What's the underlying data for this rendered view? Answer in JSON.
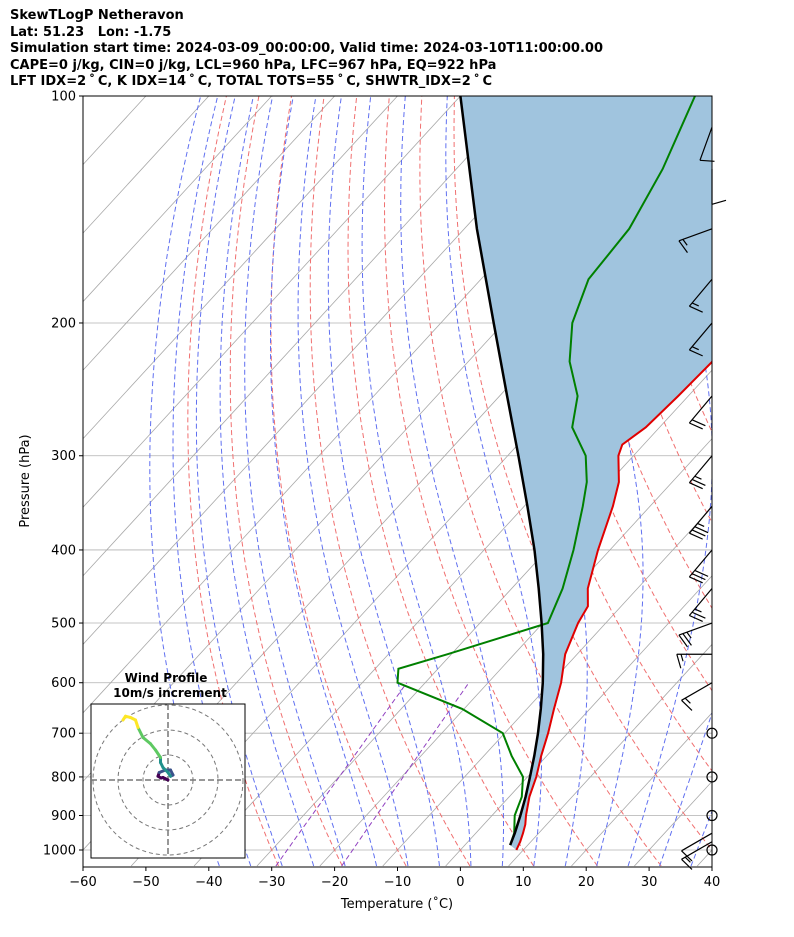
{
  "chart_data": {
    "type": "line",
    "title_lines": [
      "SkewTLogP Netheravon",
      "Lat: 51.23   Lon: -1.75",
      "Simulation start time: 2024-03-09_00:00:00, Valid time: 2024-03-10T11:00:00.00",
      "CAPE=0 j/kg, CIN=0 j/kg, LCL=960 hPa, LFC=967 hPa, EQ=922 hPa",
      "LFT IDX=2$^\\circ$C, K IDX=14$^\\circ$C, TOTAL TOTS=55$^\\circ$C, SHWTR_IDX=2$^\\circ$C"
    ],
    "title_display": [
      "SkewTLogP Netheravon",
      "Lat: 51.23   Lon: -1.75",
      "Simulation start time: 2024-03-09_00:00:00, Valid time: 2024-03-10T11:00:00.00",
      "CAPE=0 j/kg, CIN=0 j/kg, LCL=960 hPa, LFC=967 hPa, EQ=922 hPa",
      "LFT IDX=2 ˚ C, K IDX=14 ˚ C, TOTAL TOTS=55 ˚ C, SHWTR_IDX=2 ˚ C"
    ],
    "xlabel": "Temperature (˚C)",
    "ylabel": "Pressure (hPa)",
    "xlim": [
      -60,
      40
    ],
    "ylim": [
      1050,
      100
    ],
    "xticks": [
      -60,
      -50,
      -40,
      -30,
      -20,
      -10,
      0,
      10,
      20,
      30,
      40
    ],
    "xtick_labels": [
      "−60",
      "−50",
      "−40",
      "−30",
      "−20",
      "−10",
      "0",
      "10",
      "20",
      "30",
      "40"
    ],
    "yticks": [
      1000,
      900,
      800,
      700,
      600,
      500,
      400,
      300,
      200,
      100
    ],
    "ytick_labels": [
      "1000",
      "900",
      "800",
      "700",
      "600",
      "500",
      "400",
      "300",
      "200",
      "100"
    ],
    "skew_deg_per_decade": 110,
    "colors": {
      "temperature": "#e00000",
      "dewpoint": "#008000",
      "parcel": "#000000",
      "cape_fill": "#a0c4de",
      "dry_adiabat": "#f07070",
      "moist_adiabat": "#6070f0",
      "isotherm": "#a8a8a8",
      "mixing_ratio": "#9040c0",
      "grid": "#b0b0b0"
    },
    "series": [
      {
        "name": "Temperature",
        "points": [
          [
            1000,
            8.9
          ],
          [
            975,
            8.3
          ],
          [
            950,
            7.5
          ],
          [
            925,
            6.6
          ],
          [
            900,
            5.4
          ],
          [
            850,
            3.2
          ],
          [
            800,
            1.4
          ],
          [
            750,
            -0.9
          ],
          [
            700,
            -3.1
          ],
          [
            650,
            -5.7
          ],
          [
            600,
            -8.4
          ],
          [
            550,
            -11.9
          ],
          [
            500,
            -14.4
          ],
          [
            475,
            -15.3
          ],
          [
            450,
            -17.9
          ],
          [
            400,
            -21.9
          ],
          [
            350,
            -25.9
          ],
          [
            325,
            -28.5
          ],
          [
            300,
            -32.4
          ],
          [
            290,
            -33.4
          ],
          [
            275,
            -32.2
          ],
          [
            250,
            -31.6
          ],
          [
            225,
            -31.2
          ],
          [
            200,
            -30.5
          ],
          [
            175,
            -31.5
          ],
          [
            150,
            -33.6
          ],
          [
            125,
            -36.4
          ],
          [
            110,
            -37.6
          ],
          [
            100,
            -39.6
          ]
        ]
      },
      {
        "name": "Dewpoint",
        "points": [
          [
            985,
            7.2
          ],
          [
            950,
            6.1
          ],
          [
            900,
            3.6
          ],
          [
            850,
            2.0
          ],
          [
            800,
            -0.7
          ],
          [
            750,
            -5.6
          ],
          [
            700,
            -10.3
          ],
          [
            650,
            -20.3
          ],
          [
            600,
            -34.4
          ],
          [
            575,
            -36.3
          ],
          [
            550,
            -30.6
          ],
          [
            500,
            -19.2
          ],
          [
            450,
            -21.9
          ],
          [
            400,
            -25.8
          ],
          [
            350,
            -30.7
          ],
          [
            325,
            -33.6
          ],
          [
            300,
            -37.6
          ],
          [
            275,
            -43.9
          ],
          [
            250,
            -47.6
          ],
          [
            225,
            -53.9
          ],
          [
            200,
            -59.1
          ],
          [
            175,
            -62.9
          ],
          [
            150,
            -63.8
          ],
          [
            125,
            -67.2
          ],
          [
            100,
            -72.7
          ]
        ]
      },
      {
        "name": "Parcel",
        "points": [
          [
            985,
            7.2
          ],
          [
            950,
            6.2
          ],
          [
            900,
            4.5
          ],
          [
            850,
            2.6
          ],
          [
            800,
            0.4
          ],
          [
            750,
            -2.0
          ],
          [
            700,
            -4.7
          ],
          [
            650,
            -7.8
          ],
          [
            600,
            -11.3
          ],
          [
            550,
            -15.4
          ],
          [
            500,
            -20.2
          ],
          [
            450,
            -25.7
          ],
          [
            400,
            -32.0
          ],
          [
            350,
            -39.5
          ],
          [
            300,
            -48.3
          ],
          [
            250,
            -58.8
          ],
          [
            200,
            -71.6
          ],
          [
            150,
            -88.0
          ],
          [
            100,
            -110.0
          ]
        ]
      }
    ],
    "wind_barbs": [
      {
        "p": 1000,
        "calm": true
      },
      {
        "p": 975,
        "speed_kt": 15,
        "dir_deg": 300
      },
      {
        "p": 950,
        "speed_kt": 10,
        "dir_deg": 300
      },
      {
        "p": 900,
        "calm": true
      },
      {
        "p": 800,
        "calm": true
      },
      {
        "p": 700,
        "calm": true
      },
      {
        "p": 600,
        "speed_kt": 15,
        "dir_deg": 300
      },
      {
        "p": 550,
        "speed_kt": 15,
        "dir_deg": 270
      },
      {
        "p": 500,
        "speed_kt": 25,
        "dir_deg": 290
      },
      {
        "p": 450,
        "speed_kt": 25,
        "dir_deg": 320
      },
      {
        "p": 400,
        "speed_kt": 30,
        "dir_deg": 320
      },
      {
        "p": 350,
        "speed_kt": 35,
        "dir_deg": 320
      },
      {
        "p": 300,
        "speed_kt": 25,
        "dir_deg": 320
      },
      {
        "p": 250,
        "speed_kt": 20,
        "dir_deg": 320
      },
      {
        "p": 200,
        "speed_kt": 15,
        "dir_deg": 320
      },
      {
        "p": 175,
        "speed_kt": 15,
        "dir_deg": 320
      },
      {
        "p": 150,
        "speed_kt": 15,
        "dir_deg": 290
      },
      {
        "p": 125,
        "speed_kt": 10,
        "dir_deg": 0
      },
      {
        "p": 110,
        "speed_kt": 10,
        "dir_deg": 340
      }
    ],
    "hodograph": {
      "title_line1": "Wind Profile",
      "title_line2": "10m/s increment",
      "rings_ms": [
        10,
        20,
        30
      ],
      "points": [
        [
          0,
          0
        ],
        [
          -1,
          0.5
        ],
        [
          -2,
          1
        ],
        [
          -2.8,
          0.8
        ],
        [
          -4,
          1.5
        ],
        [
          -3.5,
          3
        ],
        [
          -1,
          4
        ],
        [
          1,
          4
        ],
        [
          2,
          2
        ],
        [
          1,
          1.5
        ],
        [
          0,
          3
        ],
        [
          -2,
          5
        ],
        [
          -3,
          7
        ],
        [
          -3,
          9
        ],
        [
          -5,
          12
        ],
        [
          -7,
          14.5
        ],
        [
          -10,
          17
        ],
        [
          -12,
          21
        ],
        [
          -13,
          24
        ],
        [
          -15,
          25
        ],
        [
          -17,
          25.5
        ],
        [
          -18,
          24
        ]
      ],
      "colormap": [
        "#440154",
        "#3b528b",
        "#21918c",
        "#5ec962",
        "#fde725"
      ]
    }
  }
}
